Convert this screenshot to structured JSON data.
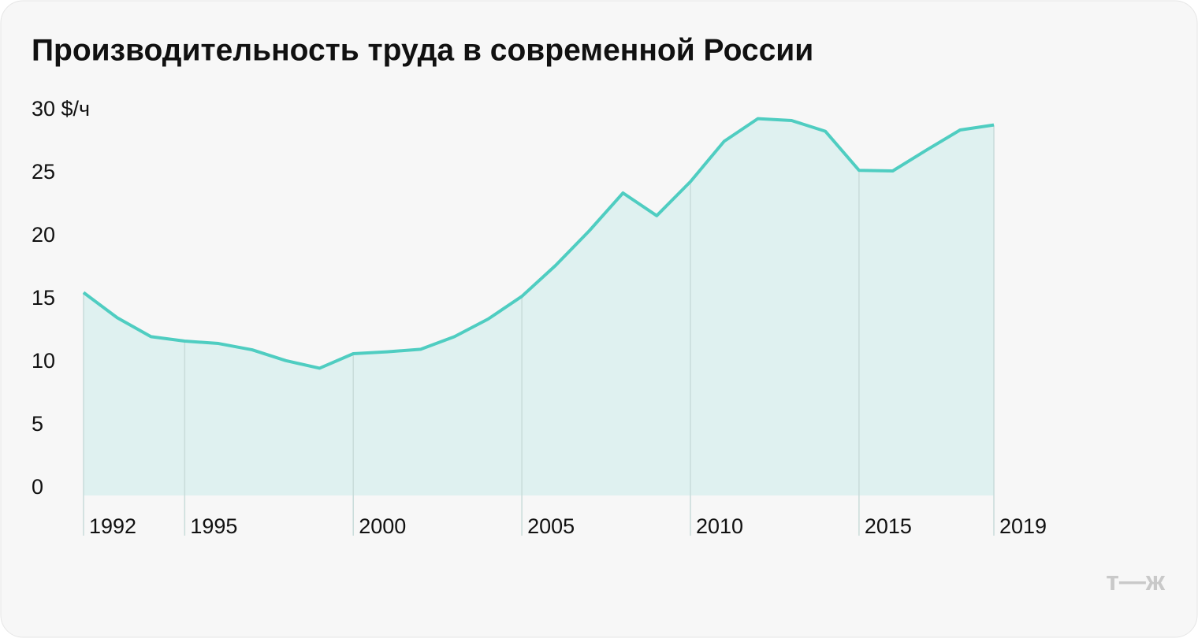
{
  "chart_data": {
    "type": "area",
    "title": "Производительность труда в современной России",
    "logo": "т—ж",
    "x": [
      1992,
      1993,
      1994,
      1995,
      1996,
      1997,
      1998,
      1999,
      2000,
      2001,
      2002,
      2003,
      2004,
      2005,
      2006,
      2007,
      2008,
      2009,
      2010,
      2011,
      2012,
      2013,
      2014,
      2015,
      2016,
      2017,
      2018,
      2019
    ],
    "series": [
      {
        "name": "Производительность труда",
        "color": "#4fcdc1",
        "values": [
          16.1,
          14.1,
          12.6,
          12.25,
          12.06,
          11.56,
          10.7,
          10.1,
          11.25,
          11.4,
          11.6,
          12.6,
          14.0,
          15.8,
          18.25,
          21.0,
          24.0,
          22.2,
          24.9,
          28.1,
          29.9,
          29.75,
          28.9,
          25.8,
          25.75,
          27.4,
          29.0,
          29.4
        ]
      }
    ],
    "fill_color": "#dff1f0",
    "xlim": [
      1992,
      2019
    ],
    "xticks": [
      1992,
      1995,
      2000,
      2005,
      2010,
      2015,
      2019
    ],
    "ylim": [
      0,
      30
    ],
    "yticks": [
      0,
      5,
      10,
      15,
      20,
      25,
      {
        "value": 30,
        "label": "30 $/ч"
      }
    ]
  }
}
